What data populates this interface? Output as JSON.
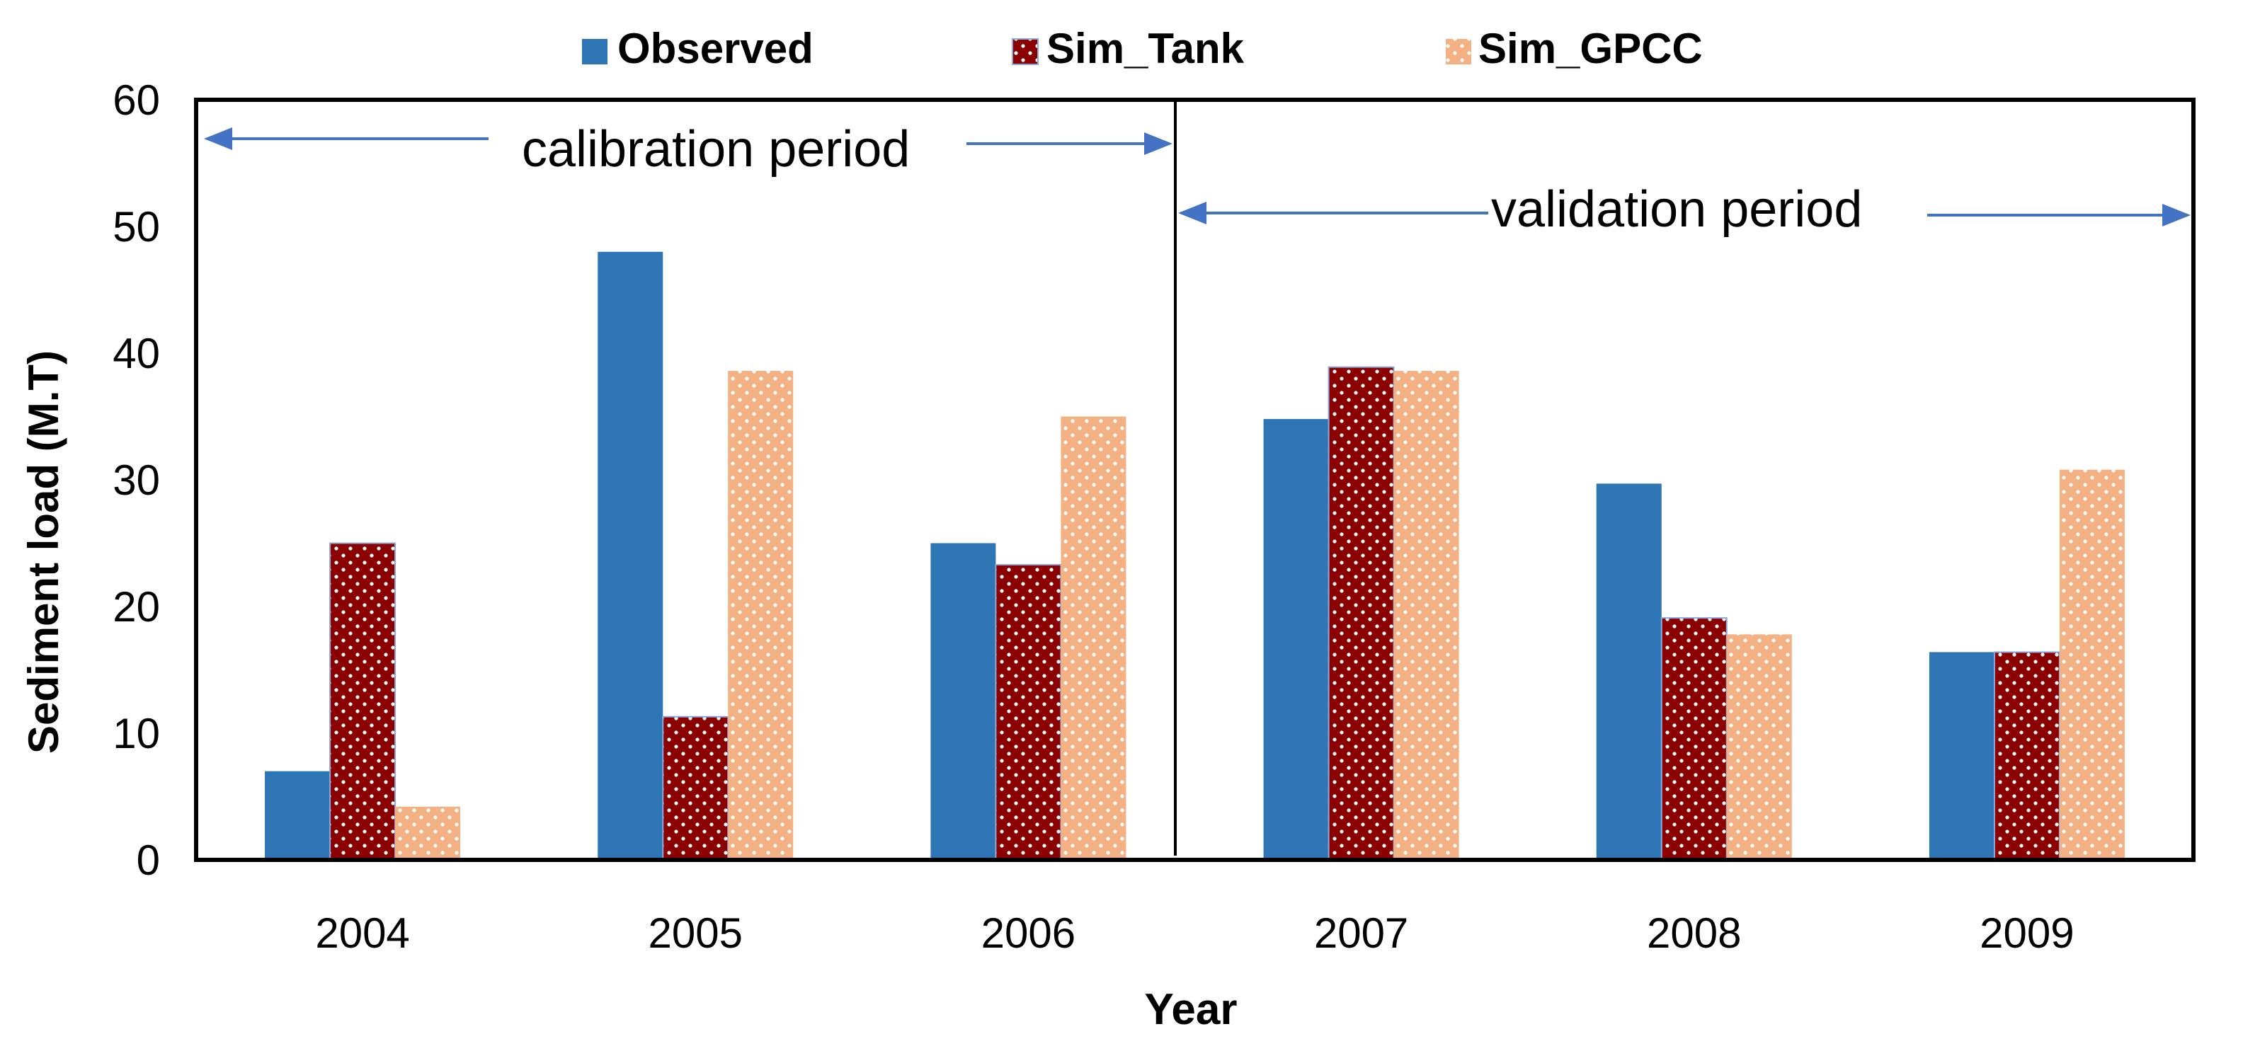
{
  "chart_data": {
    "type": "bar",
    "title": "",
    "xlabel": "Year",
    "ylabel": "Sediment load (M.T)",
    "ylim": [
      0,
      60
    ],
    "yticks": [
      0,
      10,
      20,
      30,
      40,
      50,
      60
    ],
    "categories": [
      "2004",
      "2005",
      "2006",
      "2007",
      "2008",
      "2009"
    ],
    "series": [
      {
        "name": "Observed",
        "color": "#2E75B6",
        "pattern": "solid",
        "values": [
          7.0,
          48.0,
          25.0,
          34.8,
          29.7,
          16.4
        ]
      },
      {
        "name": "Sim_Tank",
        "color": "#8B0000",
        "pattern": "dots",
        "values": [
          25.0,
          11.3,
          23.3,
          38.9,
          19.1,
          16.4
        ]
      },
      {
        "name": "Sim_GPCC",
        "color": "#F4B183",
        "pattern": "dots",
        "values": [
          4.2,
          38.6,
          35.0,
          38.6,
          17.8,
          30.8
        ]
      }
    ],
    "legend": {
      "position": "top",
      "entries": [
        "Observed",
        "Sim_Tank",
        "Sim_GPCC"
      ]
    },
    "annotations": {
      "calibration": "calibration period",
      "validation": "validation period",
      "divider_after_category": "2006"
    },
    "grid": false
  }
}
